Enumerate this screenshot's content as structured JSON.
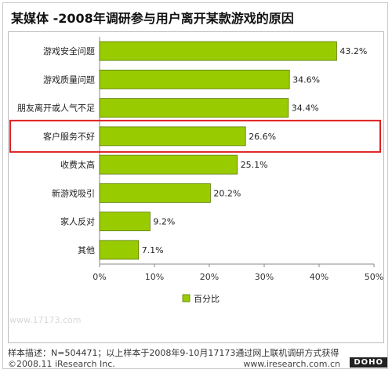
{
  "title": "某媒体 -2008年调研参与用户离开某款游戏的原因",
  "chart_data": {
    "type": "bar",
    "orientation": "horizontal",
    "categories": [
      "游戏安全问题",
      "游戏质量问题",
      "朋友离开或人气不足",
      "客户服务不好",
      "收费太高",
      "新游戏吸引",
      "家人反对",
      "其他"
    ],
    "series": [
      {
        "name": "百分比",
        "values": [
          43.2,
          34.6,
          34.4,
          26.6,
          25.1,
          20.2,
          9.2,
          7.1
        ],
        "labels": [
          "43.2%",
          "34.6%",
          "34.4%",
          "26.6%",
          "25.1%",
          "20.2%",
          "9.2%",
          "7.1%"
        ]
      }
    ],
    "xlim": [
      0,
      50
    ],
    "x_ticks": [
      "0%",
      "10%",
      "20%",
      "30%",
      "40%",
      "50%"
    ],
    "grid": false,
    "legend": "bottom",
    "highlighted_category": "客户服务不好",
    "bar_color": "#99cc00",
    "bar_stroke": "#5a7a00",
    "highlight_color": "#e02020"
  },
  "sample_note": "样本描述：N=504471；以上样本于2008年9-10月17173通过网上联机调研方式获得",
  "copyright": "©2008.11 iResearch Inc.",
  "website": "www.iresearch.com.cn",
  "watermark_badge": "DOHO",
  "faint_watermark": "www.17173.com"
}
